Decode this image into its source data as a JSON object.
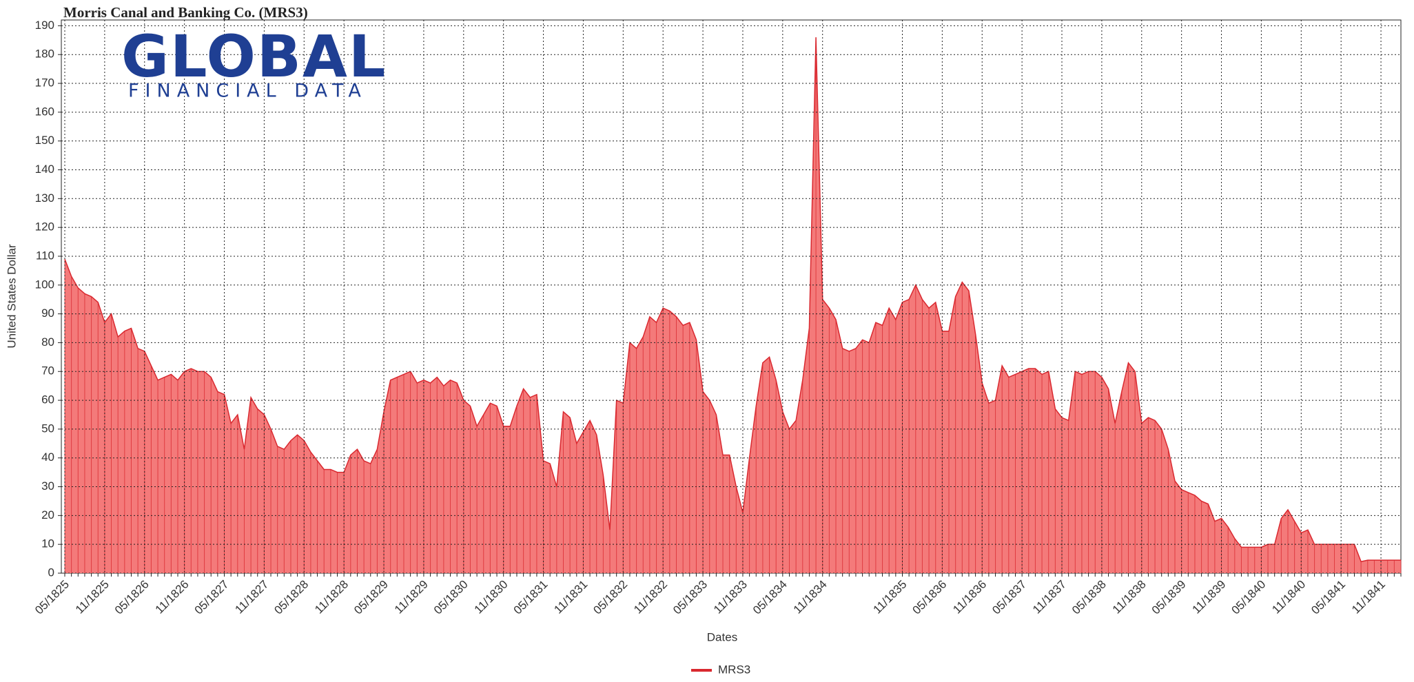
{
  "chart_data": {
    "type": "area",
    "title": "Morris Canal and Banking Co. (MRS3)",
    "logo": {
      "main": "GLOBAL",
      "sub": "FINANCIAL DATA"
    },
    "x_label": "Dates",
    "y_label": "United States Dollar",
    "categories": [
      "05/1825",
      null,
      null,
      null,
      null,
      null,
      "11/1825",
      null,
      null,
      null,
      null,
      null,
      "05/1826",
      null,
      null,
      null,
      null,
      null,
      "11/1826",
      null,
      null,
      null,
      null,
      null,
      "05/1827",
      null,
      null,
      null,
      null,
      null,
      "11/1827",
      null,
      null,
      null,
      null,
      null,
      "05/1828",
      null,
      null,
      null,
      null,
      null,
      "11/1828",
      null,
      null,
      null,
      null,
      null,
      "05/1829",
      null,
      null,
      null,
      null,
      null,
      "11/1829",
      null,
      null,
      null,
      null,
      null,
      "05/1830",
      null,
      null,
      null,
      null,
      null,
      "11/1830",
      null,
      null,
      null,
      null,
      null,
      "05/1831",
      null,
      null,
      null,
      null,
      null,
      "11/1831",
      null,
      null,
      null,
      null,
      null,
      "05/1832",
      null,
      null,
      null,
      null,
      null,
      "11/1832",
      null,
      null,
      null,
      null,
      null,
      "05/1833",
      null,
      null,
      null,
      null,
      null,
      "11/1833",
      null,
      null,
      null,
      null,
      null,
      "05/1834",
      null,
      null,
      null,
      null,
      null,
      "11/1834",
      null,
      null,
      null,
      null,
      null,
      null,
      null,
      null,
      null,
      null,
      null,
      "11/1835",
      null,
      null,
      null,
      null,
      null,
      "05/1836",
      null,
      null,
      null,
      null,
      null,
      "11/1836",
      null,
      null,
      null,
      null,
      null,
      "05/1837",
      null,
      null,
      null,
      null,
      null,
      "11/1837",
      null,
      null,
      null,
      null,
      null,
      "05/1838",
      null,
      null,
      null,
      null,
      null,
      "11/1838",
      null,
      null,
      null,
      null,
      null,
      "05/1839",
      null,
      null,
      null,
      null,
      null,
      "11/1839",
      null,
      null,
      null,
      null,
      null,
      "05/1840",
      null,
      null,
      null,
      null,
      null,
      "11/1840",
      null,
      null,
      null,
      null,
      null,
      "05/1841",
      null,
      null,
      null,
      null,
      null,
      "11/1841",
      null,
      null,
      null
    ],
    "series": [
      {
        "name": "MRS3",
        "color": "#d9282f",
        "fill": "#f47a7a",
        "values": [
          109,
          103,
          99,
          97,
          96,
          94,
          87,
          90,
          82,
          84,
          85,
          78,
          77,
          72,
          67,
          68,
          69,
          67,
          70,
          71,
          70,
          70,
          68,
          63,
          62,
          52,
          55,
          43,
          61,
          57,
          55,
          50,
          44,
          43,
          46,
          48,
          46,
          42,
          39,
          36,
          36,
          35,
          35,
          41,
          43,
          39,
          38,
          43,
          56,
          67,
          68,
          69,
          70,
          66,
          67,
          66,
          68,
          65,
          67,
          66,
          60,
          58,
          51,
          55,
          59,
          58,
          51,
          51,
          58,
          64,
          61,
          62,
          39,
          38,
          30,
          56,
          54,
          45,
          49,
          53,
          48,
          34,
          15,
          60,
          59,
          80,
          78,
          82,
          89,
          87,
          92,
          91,
          89,
          86,
          87,
          81,
          63,
          60,
          55,
          41,
          41,
          30,
          21,
          40,
          58,
          73,
          75,
          67,
          56,
          50,
          53,
          67,
          85,
          186,
          95,
          92,
          88,
          78,
          77,
          78,
          81,
          80,
          87,
          86,
          92,
          88,
          94,
          95,
          100,
          95,
          92,
          94,
          84,
          84,
          96,
          101,
          98,
          83,
          66,
          59,
          60,
          72,
          68,
          69,
          70,
          71,
          71,
          69,
          70,
          57,
          54,
          53,
          70,
          69,
          70,
          70,
          68,
          64,
          52,
          63,
          73,
          70,
          52,
          54,
          53,
          50,
          43,
          32,
          29,
          28,
          27,
          25,
          24,
          18,
          19,
          16,
          12,
          9,
          9,
          9,
          9,
          10,
          10,
          19,
          22,
          18,
          14,
          15,
          10,
          10,
          10,
          10,
          10,
          10,
          10,
          4,
          4.5,
          4.5,
          4.5,
          4.5,
          4.5,
          4.5
        ]
      }
    ],
    "ylim": [
      0,
      192
    ],
    "yticks": [
      0,
      10,
      20,
      30,
      40,
      50,
      60,
      70,
      80,
      90,
      100,
      110,
      120,
      130,
      140,
      150,
      160,
      170,
      180,
      190
    ],
    "grid": true,
    "legend": "bottom"
  }
}
